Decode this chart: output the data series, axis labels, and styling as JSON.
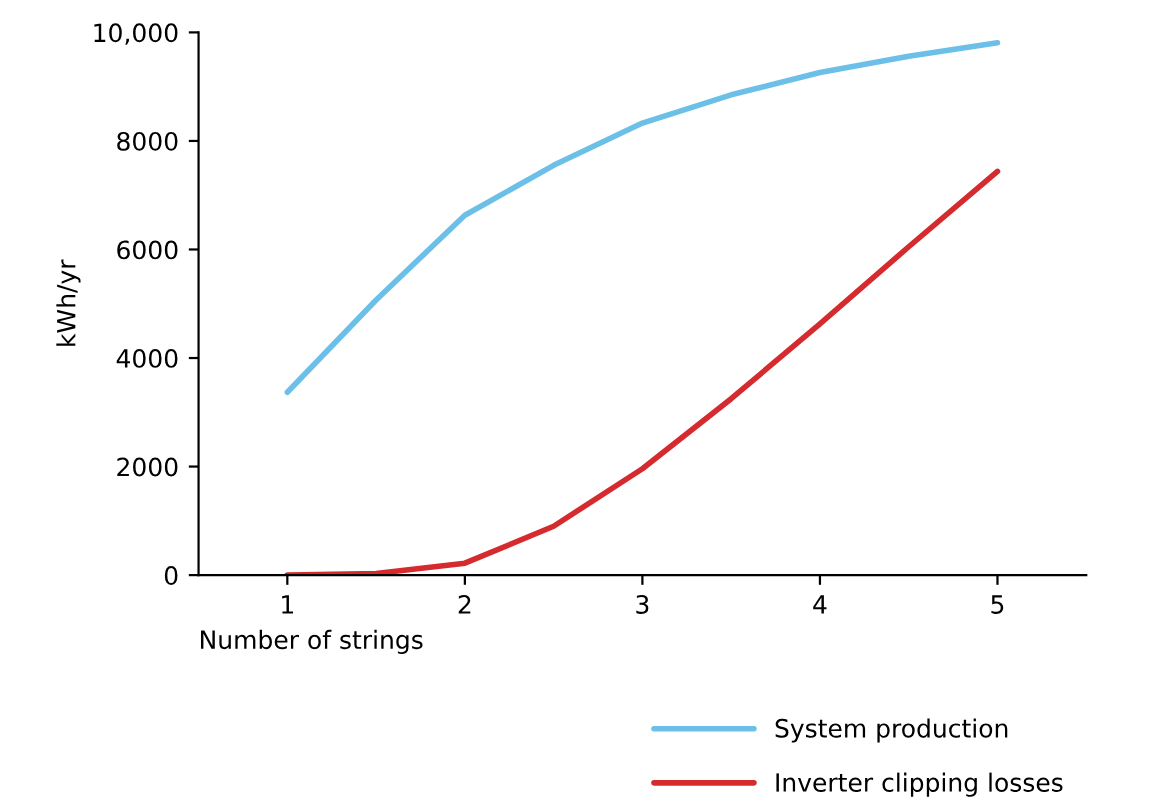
{
  "chart_data": {
    "type": "line",
    "xlabel": "Number of strings",
    "ylabel": "kWh/yr",
    "xlim": [
      0.5,
      5.5
    ],
    "xticks": [
      1,
      2,
      3,
      4,
      5
    ],
    "ylim": [
      0,
      10000
    ],
    "yticks": [
      0,
      2000,
      4000,
      6000,
      8000,
      {
        "value": 10000,
        "label": "10,000"
      }
    ],
    "grid": false,
    "legend": "bottom right",
    "marker": "none",
    "line_style": "solid",
    "series": [
      {
        "name": "System production",
        "color": "#6cc0e8",
        "x": [
          1,
          1.5,
          2,
          2.5,
          3,
          3.5,
          4,
          4.5,
          5
        ],
        "values": [
          3370,
          5070,
          6630,
          7550,
          8330,
          8850,
          9260,
          9560,
          9810
        ]
      },
      {
        "name": "Inverter clipping losses",
        "color": "#d52b2f",
        "x": [
          1,
          1.5,
          2,
          2.5,
          3,
          3.5,
          4,
          4.5,
          5
        ],
        "values": [
          0,
          30,
          220,
          900,
          1960,
          3250,
          4630,
          6050,
          7440
        ]
      }
    ]
  }
}
